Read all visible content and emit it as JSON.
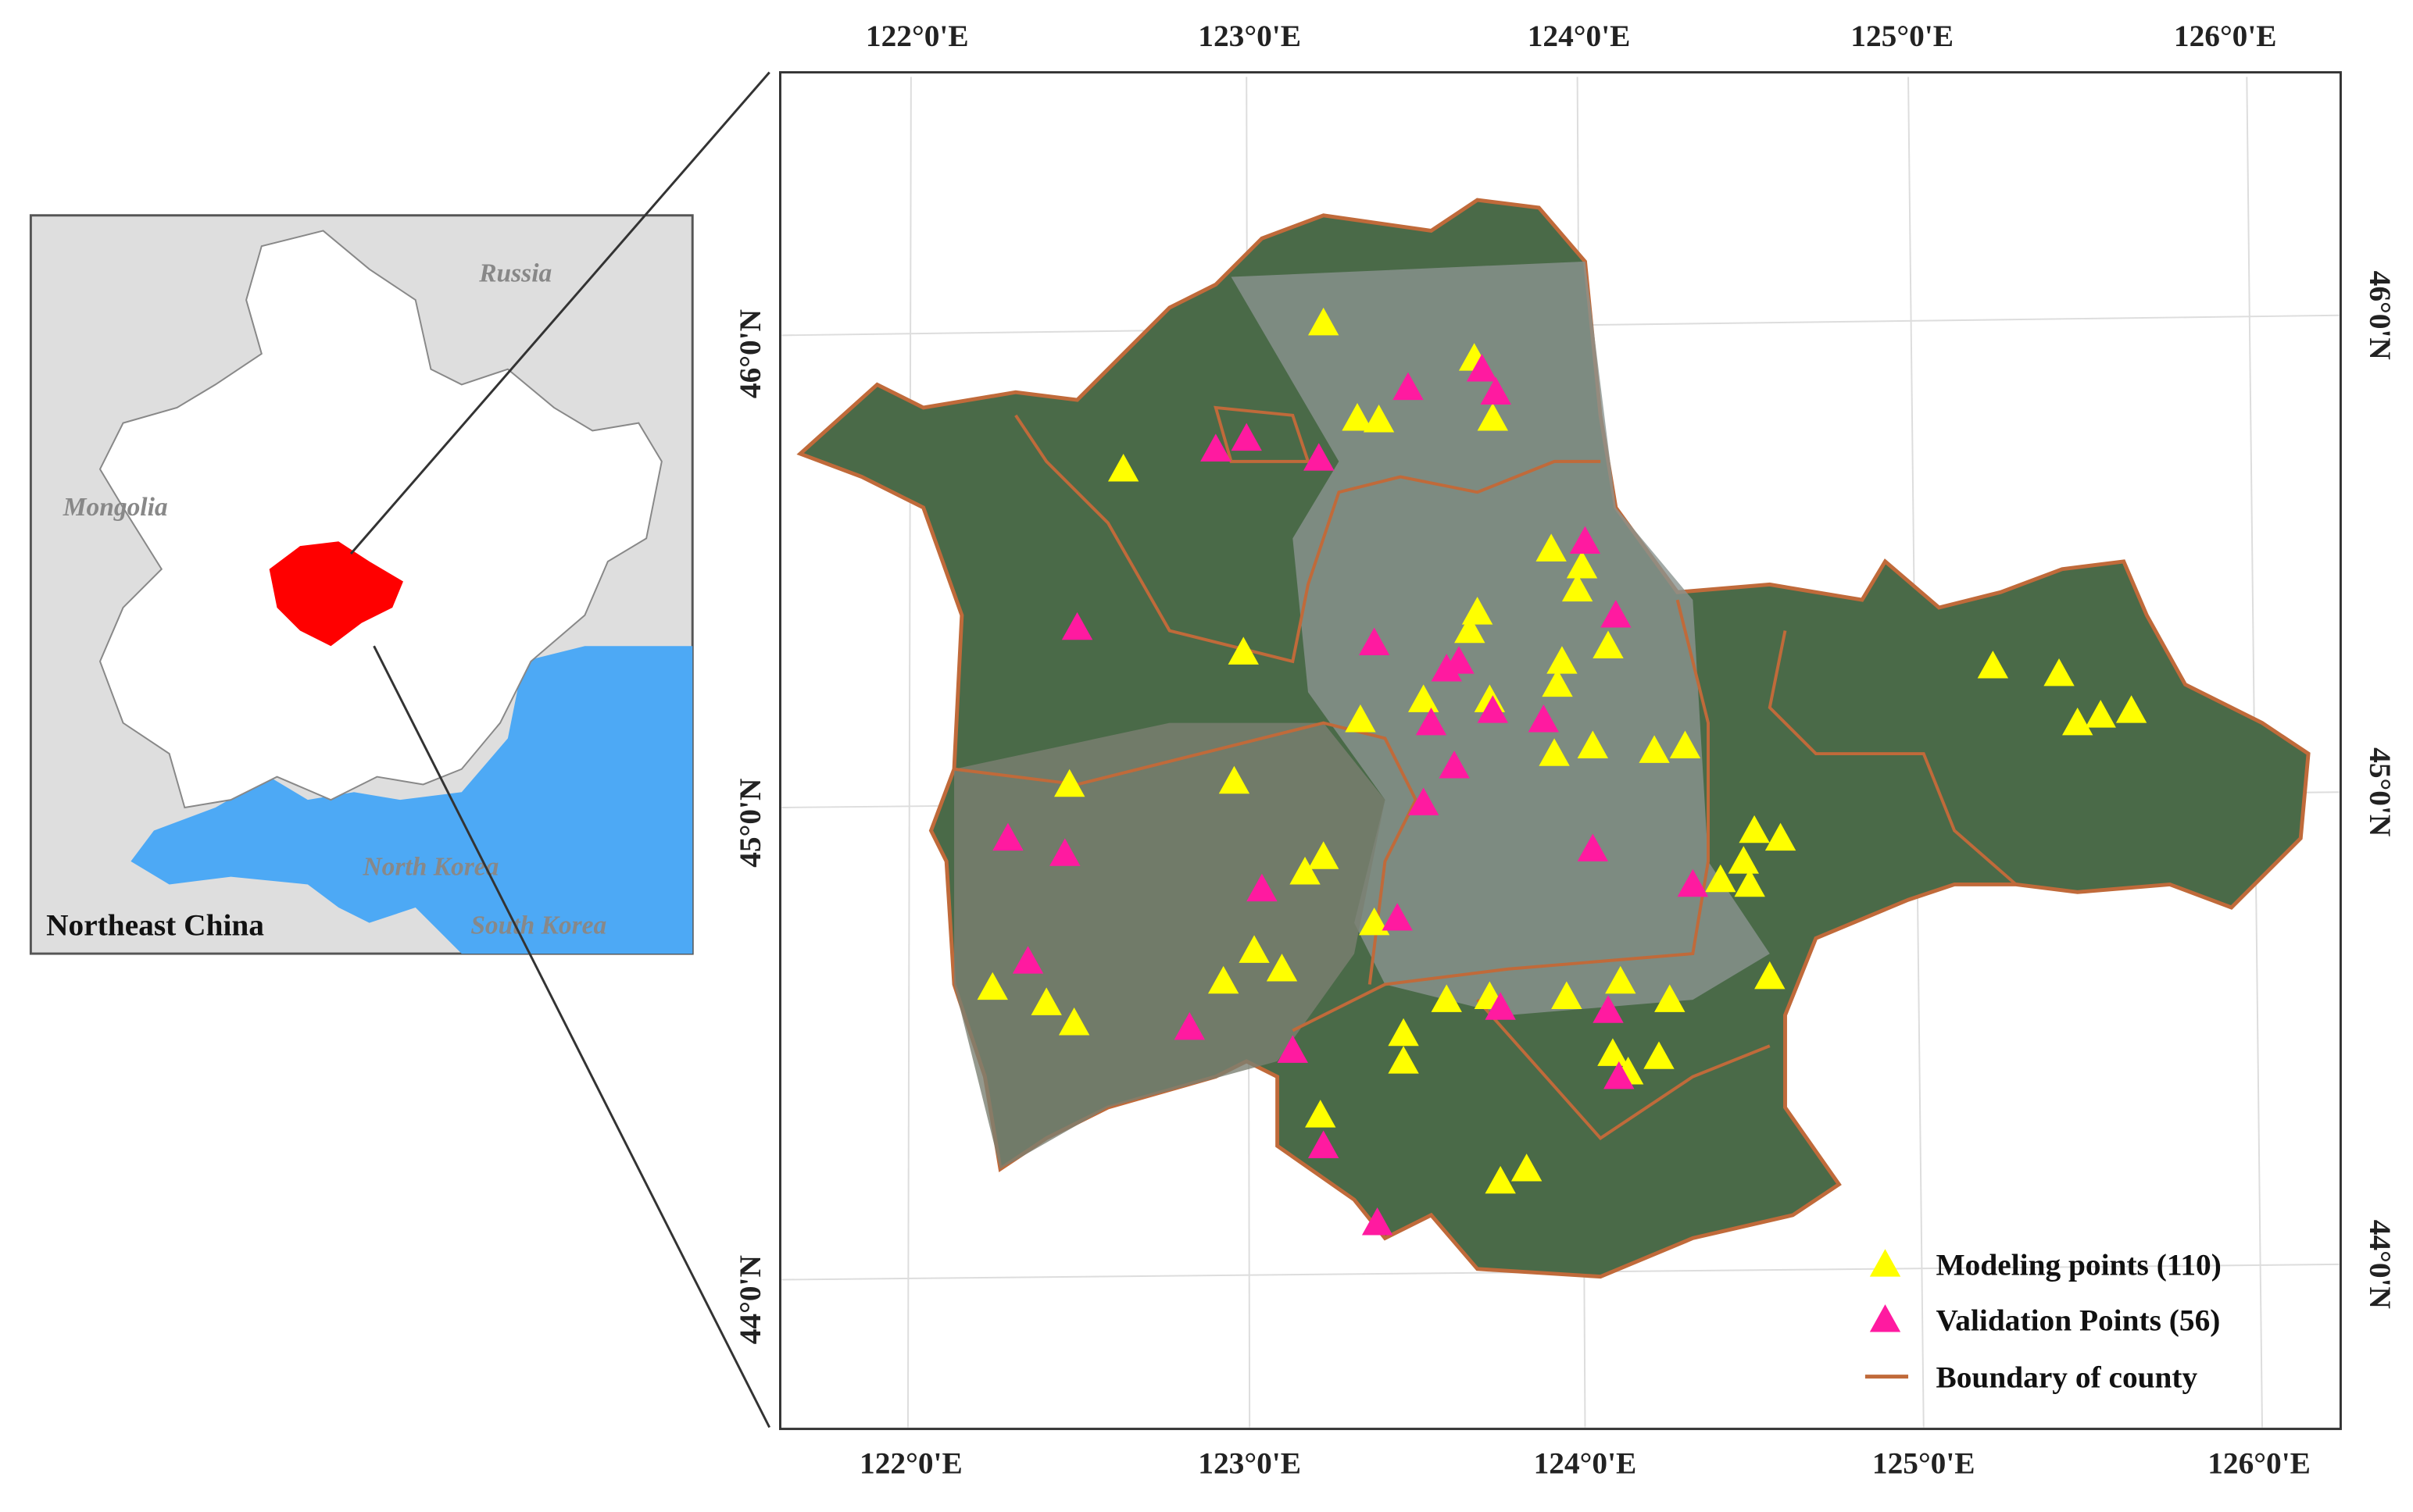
{
  "map": {
    "lon_labels_top": [
      "122°0'E",
      "123°0'E",
      "124°0'E",
      "125°0'E",
      "126°0'E"
    ],
    "lon_labels_bottom": [
      "122°0'E",
      "123°0'E",
      "124°0'E",
      "125°0'E",
      "126°0'E"
    ],
    "lat_labels_left": [
      "46°0'N",
      "45°0'N",
      "44°0'N"
    ],
    "lat_labels_right": [
      "46°0'N",
      "45°0'N",
      "44°0'N"
    ]
  },
  "inset": {
    "labels": [
      "Russia",
      "Mongolia",
      "North Korea",
      "South Korea"
    ],
    "title": "Northeast China"
  },
  "legend": [
    "Modeling points (110)",
    "Validation Points (56)",
    "Boundary of county"
  ]
}
